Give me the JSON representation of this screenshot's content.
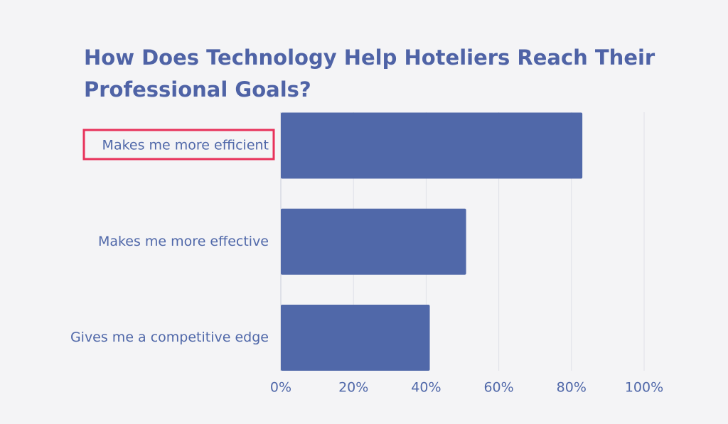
{
  "chart_data": {
    "type": "bar",
    "orientation": "horizontal",
    "title_lines": [
      "How Does Technology Help Hoteliers Reach Their",
      "Professional Goals?"
    ],
    "categories": [
      "Makes me more efficient",
      "Makes me more effective",
      "Gives me a competitive edge"
    ],
    "values": [
      83,
      51,
      41
    ],
    "color": "#5068a9",
    "xlim": [
      0,
      100
    ],
    "xticks": [
      {
        "value": 0,
        "label": "0%"
      },
      {
        "value": 20,
        "label": "20%"
      },
      {
        "value": 40,
        "label": "40%"
      },
      {
        "value": 60,
        "label": "60%"
      },
      {
        "value": 80,
        "label": "80%"
      },
      {
        "value": 100,
        "label": "100%"
      }
    ],
    "grid": true
  }
}
